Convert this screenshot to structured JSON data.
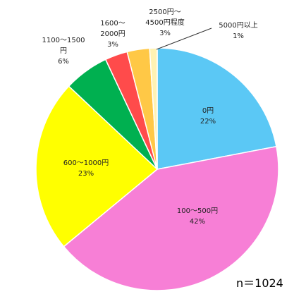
{
  "chart_data": {
    "type": "pie",
    "categories": [
      "0円",
      "100〜500円",
      "600〜1000円",
      "1100〜1500円",
      "1600〜2000円",
      "2500円〜4500円程度",
      "5000円以上"
    ],
    "values": [
      22,
      42,
      23,
      6,
      3,
      3,
      1
    ],
    "value_labels": [
      "22%",
      "42%",
      "23%",
      "6%",
      "3%",
      "3%",
      "1%"
    ],
    "colors": [
      "#5bc8f5",
      "#f77fd6",
      "#ffff00",
      "#00b050",
      "#ff4b4b",
      "#ffc846",
      "#fff2b3"
    ],
    "annotation": "n＝1024"
  }
}
